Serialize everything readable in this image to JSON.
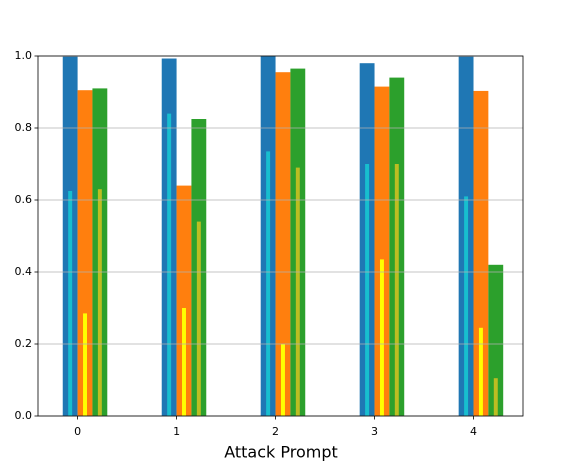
{
  "chart_data": {
    "type": "bar",
    "xlabel": "Attack Prompt",
    "x": [
      0,
      1,
      2,
      3,
      4
    ],
    "xlim": [
      -0.4,
      4.5
    ],
    "xticks": [
      0,
      1,
      2,
      3,
      4
    ],
    "ylim": [
      0,
      1
    ],
    "yticks": [
      {
        "value": 0,
        "label": "0.0"
      },
      0.2,
      0.4,
      0.6,
      0.8,
      {
        "value": 1,
        "label": "1.0"
      }
    ],
    "grid": true,
    "series": [
      {
        "color": "#1f77b4",
        "values": [
          0.998,
          0.993,
          1.0,
          0.98,
          0.998
        ]
      },
      {
        "color": "#ff7f0e",
        "values": [
          0.905,
          0.64,
          0.955,
          0.915,
          0.903
        ]
      },
      {
        "color": "#2ca02c",
        "values": [
          0.91,
          0.825,
          0.965,
          0.94,
          0.42
        ]
      },
      {
        "color": "#17becf",
        "values": [
          0.625,
          0.84,
          0.735,
          0.7,
          0.61
        ]
      },
      {
        "color": "#ffff00",
        "values": [
          0.285,
          0.3,
          0.2,
          0.435,
          0.245
        ]
      },
      {
        "color": "#bcbd22",
        "values": [
          0.63,
          0.54,
          0.69,
          0.7,
          0.105
        ]
      }
    ]
  }
}
